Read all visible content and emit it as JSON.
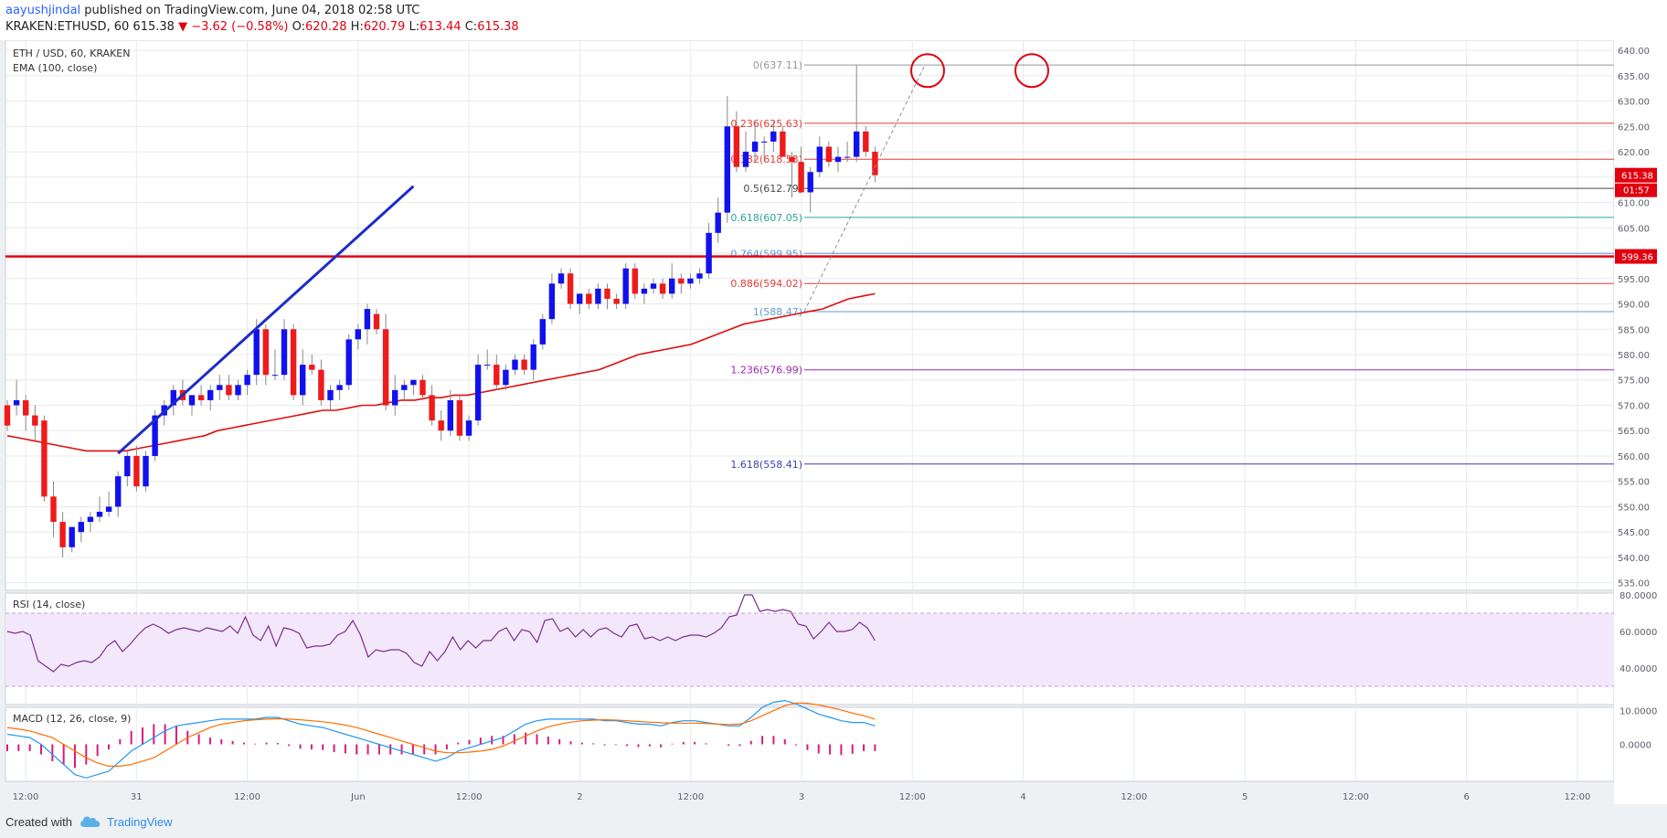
{
  "header": {
    "author": "aayushjindal",
    "published_text": " published on TradingView.com, June 04, 2018 02:58 UTC",
    "symbol": "KRAKEN:ETHUSD, 60",
    "last": "615.38",
    "change_text": "▼ −3.62 (−0.58%)",
    "o_label": "O:",
    "o_value": "620.28",
    "h_label": "H:",
    "h_value": "620.79",
    "l_label": "L:",
    "l_value": "613.44",
    "c_label": "C:",
    "c_value": "615.38"
  },
  "footer": {
    "created_with": "Created with",
    "brand": "TradingView"
  },
  "chart_data": [
    {
      "type": "candlestick",
      "title": "ETH / USD, 60, KRAKEN",
      "indicator_label": "EMA (100, close)",
      "price_axis_ticks": [
        535,
        540,
        545,
        550,
        555,
        560,
        565,
        570,
        575,
        580,
        585,
        590,
        595,
        600,
        605,
        610,
        615,
        620,
        625,
        630,
        635,
        640
      ],
      "ylim": [
        533.5,
        642
      ],
      "time_axis_ticks": [
        "12:00",
        "31",
        "12:00",
        "Jun",
        "12:00",
        "2",
        "12:00",
        "3",
        "12:00",
        "4",
        "12:00",
        "5",
        "12:00",
        "6",
        "12:00"
      ],
      "last_price_label": "615.38",
      "countdown_label": "01:57",
      "resistance_label": "599.36",
      "resistance_value": 599.36,
      "fibonacci": [
        {
          "label": "0(637.11)",
          "level": 637.11,
          "color": "#9598a1"
        },
        {
          "label": "0.236(625.63)",
          "level": 625.63,
          "color": "#e53935"
        },
        {
          "label": "0.382(618.53)",
          "level": 618.53,
          "color": "#e53935"
        },
        {
          "label": "0.5(612.79)",
          "level": 612.79,
          "color": "#4a4a4a"
        },
        {
          "label": "0.618(607.05)",
          "level": 607.05,
          "color": "#26a69a"
        },
        {
          "label": "0.764(599.95)",
          "level": 599.95,
          "color": "#5b9bd5"
        },
        {
          "label": "0.886(594.02)",
          "level": 594.02,
          "color": "#e53935"
        },
        {
          "label": "1(588.47)",
          "level": 588.47,
          "color": "#5b9bd5"
        },
        {
          "label": "1.236(576.99)",
          "level": 576.99,
          "color": "#9c27b0"
        },
        {
          "label": "1.618(558.41)",
          "level": 558.41,
          "color": "#3f3fb5"
        }
      ],
      "trendline": {
        "from": [
          12,
          560.5
        ],
        "to": [
          44,
          613.2
        ]
      },
      "ohlc": [
        [
          570,
          571,
          565,
          566
        ],
        [
          570,
          575,
          568,
          571
        ],
        [
          571,
          572,
          565,
          568
        ],
        [
          568,
          570,
          563,
          566
        ],
        [
          567,
          568,
          551,
          552
        ],
        [
          552,
          555,
          544,
          547
        ],
        [
          547,
          549,
          540,
          542
        ],
        [
          542,
          546,
          541,
          546
        ],
        [
          545,
          548,
          543,
          547
        ],
        [
          547,
          549,
          545,
          548
        ],
        [
          548,
          552,
          547,
          549
        ],
        [
          549,
          553,
          548,
          550
        ],
        [
          550,
          557,
          548,
          556
        ],
        [
          556,
          561,
          554,
          560
        ],
        [
          560,
          562,
          553,
          554
        ],
        [
          554,
          561,
          553,
          560
        ],
        [
          560,
          569,
          559,
          568
        ],
        [
          568,
          571,
          566,
          570
        ],
        [
          570,
          574,
          568,
          573
        ],
        [
          573,
          575,
          570,
          571
        ],
        [
          570,
          572,
          568,
          572
        ],
        [
          572,
          574,
          570,
          571
        ],
        [
          571,
          574,
          569,
          573
        ],
        [
          573,
          576,
          571,
          574
        ],
        [
          574,
          576,
          571,
          572
        ],
        [
          572,
          575,
          571,
          574
        ],
        [
          574,
          577,
          572,
          576
        ],
        [
          576,
          587,
          574,
          585
        ],
        [
          585,
          586,
          574,
          576
        ],
        [
          576,
          581,
          575,
          576
        ],
        [
          576,
          587,
          575,
          585
        ],
        [
          585,
          586,
          571,
          572
        ],
        [
          572,
          581,
          570,
          578
        ],
        [
          578,
          580,
          576,
          577
        ],
        [
          577,
          579,
          570,
          571
        ],
        [
          571,
          574,
          569,
          573
        ],
        [
          573,
          575,
          571,
          574
        ],
        [
          574,
          584,
          573,
          583
        ],
        [
          583,
          586,
          581,
          585
        ],
        [
          585,
          590,
          582,
          589
        ],
        [
          588,
          589,
          584,
          585
        ],
        [
          585,
          588,
          569,
          570
        ],
        [
          570,
          576,
          568,
          573
        ],
        [
          573,
          575,
          571,
          574
        ],
        [
          574,
          575,
          572,
          575
        ],
        [
          575,
          576,
          571,
          572
        ],
        [
          572,
          574,
          566,
          567
        ],
        [
          567,
          569,
          563,
          565
        ],
        [
          565,
          573,
          564,
          571
        ],
        [
          571,
          572,
          563,
          564
        ],
        [
          564,
          568,
          563,
          567
        ],
        [
          567,
          580,
          566,
          578
        ],
        [
          578,
          581,
          577,
          578
        ],
        [
          578,
          580,
          573,
          574
        ],
        [
          574,
          578,
          573,
          577
        ],
        [
          577,
          580,
          576,
          579
        ],
        [
          579,
          580,
          576,
          577
        ],
        [
          577,
          583,
          575,
          582
        ],
        [
          582,
          588,
          581,
          587
        ],
        [
          587,
          596,
          586,
          594
        ],
        [
          594,
          597,
          593,
          596
        ],
        [
          596,
          597,
          589,
          590
        ],
        [
          590,
          592,
          588,
          592
        ],
        [
          592,
          593,
          589,
          590
        ],
        [
          590,
          594,
          589,
          593
        ],
        [
          593,
          594,
          589,
          591
        ],
        [
          591,
          592,
          589,
          590
        ],
        [
          590,
          598,
          589,
          597
        ],
        [
          597,
          598,
          591,
          592
        ],
        [
          592,
          594,
          590,
          593
        ],
        [
          593,
          595,
          592,
          594
        ],
        [
          594,
          595,
          591,
          592
        ],
        [
          592,
          598,
          591,
          595
        ],
        [
          595,
          596,
          592,
          594
        ],
        [
          594,
          596,
          593,
          595
        ],
        [
          595,
          597,
          594,
          596
        ],
        [
          596,
          606,
          595,
          604
        ],
        [
          604,
          611,
          602,
          608
        ],
        [
          608,
          631,
          606,
          625
        ],
        [
          625,
          628,
          616,
          617
        ],
        [
          617,
          624,
          616,
          620
        ],
        [
          620,
          626,
          618,
          622
        ],
        [
          622,
          623,
          618,
          622
        ],
        [
          622,
          626,
          620,
          624
        ],
        [
          624,
          625,
          619,
          619
        ],
        [
          619,
          620,
          611,
          618
        ],
        [
          618,
          621,
          612,
          612
        ],
        [
          612,
          617,
          608,
          616
        ],
        [
          616,
          623,
          615,
          621
        ],
        [
          621,
          622,
          617,
          618
        ],
        [
          618,
          621,
          616,
          619
        ],
        [
          619,
          622,
          618,
          619
        ],
        [
          619,
          637,
          618,
          624
        ],
        [
          624,
          625,
          619,
          620
        ],
        [
          620,
          621,
          614,
          615.38
        ]
      ],
      "ema_100": [
        564,
        563.5,
        563,
        562.5,
        562,
        561.5,
        561,
        561,
        561,
        561,
        561.5,
        562,
        562.5,
        563,
        563.5,
        564,
        565,
        565.5,
        566,
        566.5,
        567,
        567.5,
        568,
        568.5,
        569,
        569,
        569.5,
        570,
        570,
        570.5,
        571,
        571,
        571.5,
        571.5,
        572,
        572,
        572.5,
        573,
        573.5,
        574,
        574.5,
        575,
        575.5,
        576,
        576.5,
        577,
        578,
        579,
        580,
        580.5,
        581,
        581.5,
        582,
        583,
        584,
        585,
        586,
        586.5,
        587,
        587.5,
        588,
        588.5,
        589,
        590,
        591,
        591.5,
        592
      ],
      "panels": [
        {
          "title": "RSI (14, close)",
          "axis_ticks": [
            "80.0000",
            "60.0000",
            "40.0000"
          ],
          "band": [
            30,
            70
          ],
          "ylim": [
            20,
            81
          ],
          "values": [
            60,
            59,
            60,
            58,
            44,
            41,
            38,
            42,
            41,
            43,
            44,
            43,
            46,
            52,
            55,
            49,
            53,
            58,
            62,
            64,
            62,
            59,
            61,
            62,
            61,
            60,
            62,
            61,
            60,
            63,
            59,
            68,
            58,
            55,
            63,
            52,
            62,
            61,
            59,
            51,
            52,
            52,
            53,
            58,
            60,
            66,
            58,
            46,
            50,
            49,
            50,
            50,
            48,
            43,
            41,
            49,
            44,
            49,
            57,
            50,
            55,
            51,
            55,
            55,
            60,
            62,
            55,
            61,
            60,
            54,
            66,
            67,
            60,
            62,
            57,
            61,
            57,
            61,
            62,
            59,
            57,
            63,
            64,
            56,
            57,
            55,
            57,
            55,
            57,
            58,
            58,
            57,
            59,
            62,
            68,
            69,
            80,
            80,
            71,
            72,
            71,
            72,
            71,
            64,
            63,
            56,
            60,
            65,
            60,
            60,
            61,
            65,
            62,
            55
          ]
        },
        {
          "title": "MACD (12, 26, close, 9)",
          "axis_ticks": [
            "10.0000",
            "0.0000"
          ],
          "ylim": [
            -11,
            11
          ],
          "macd": [
            3,
            2.5,
            2,
            0,
            -3,
            -6,
            -9,
            -10,
            -9,
            -8,
            -5,
            -2,
            0,
            2,
            4,
            5.5,
            6,
            6.5,
            7,
            7.5,
            7.5,
            7.5,
            7.5,
            8,
            8,
            7,
            6,
            5.5,
            5,
            4,
            3,
            2,
            1,
            0,
            -1,
            -2,
            -3,
            -4,
            -5,
            -4,
            -2,
            -1,
            0,
            1,
            2,
            4,
            6,
            7,
            7.5,
            7.5,
            7.5,
            7.5,
            7.5,
            7,
            7,
            6.5,
            6,
            6,
            5.5,
            6.5,
            7,
            7,
            6.5,
            6,
            5.5,
            5.5,
            8,
            11,
            12.5,
            13,
            12,
            10.5,
            9,
            8,
            7,
            6.5,
            6.5,
            5.5
          ],
          "signal": [
            5,
            4.5,
            4,
            3,
            2,
            0,
            -2,
            -4,
            -5.5,
            -6.5,
            -6.5,
            -6,
            -5,
            -4,
            -2,
            0,
            2,
            3.5,
            5,
            6,
            6.5,
            7,
            7.3,
            7.5,
            7.6,
            7.5,
            7.3,
            7,
            6.7,
            6.3,
            5.7,
            5,
            4,
            3,
            2,
            1,
            0,
            -1,
            -2,
            -2.5,
            -2.5,
            -2.3,
            -2,
            -1.5,
            -0.5,
            1,
            2.5,
            4,
            5.2,
            6,
            6.6,
            7,
            7.2,
            7.3,
            7.2,
            7,
            6.8,
            6.6,
            6.4,
            6.3,
            6.3,
            6.3,
            6.2,
            6,
            5.9,
            6,
            7,
            8.5,
            10,
            11.5,
            12.3,
            12.2,
            11.7,
            11,
            10.2,
            9.3,
            8.5,
            7.5
          ]
        }
      ]
    }
  ]
}
